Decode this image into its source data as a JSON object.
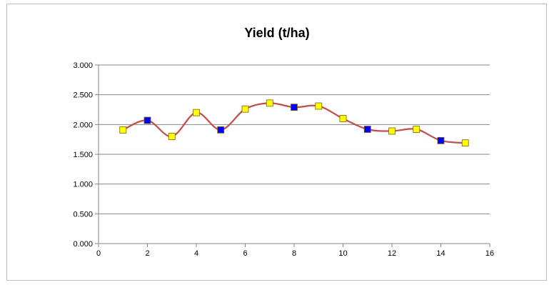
{
  "chart_data": {
    "type": "line",
    "title": "Yield (t/ha)",
    "xlabel": "",
    "ylabel": "",
    "xlim": [
      0,
      16
    ],
    "ylim": [
      0,
      3
    ],
    "x_ticks": [
      "0",
      "2",
      "4",
      "6",
      "8",
      "10",
      "12",
      "14",
      "16"
    ],
    "y_ticks": [
      "0.000",
      "0.500",
      "1.000",
      "1.500",
      "2.000",
      "2.500",
      "3.000"
    ],
    "grid": "horizontal",
    "legend": "none",
    "line_color": "#c0504d",
    "series": [
      {
        "points": [
          {
            "x": 1,
            "y": 1.91,
            "marker_color": "#ffff00"
          },
          {
            "x": 2,
            "y": 2.07,
            "marker_color": "#0000ff"
          },
          {
            "x": 3,
            "y": 1.8,
            "marker_color": "#ffff00"
          },
          {
            "x": 4,
            "y": 2.2,
            "marker_color": "#ffff00"
          },
          {
            "x": 5,
            "y": 1.91,
            "marker_color": "#0000ff"
          },
          {
            "x": 6,
            "y": 2.26,
            "marker_color": "#ffff00"
          },
          {
            "x": 7,
            "y": 2.36,
            "marker_color": "#ffff00"
          },
          {
            "x": 8,
            "y": 2.29,
            "marker_color": "#0000ff"
          },
          {
            "x": 9,
            "y": 2.31,
            "marker_color": "#ffff00"
          },
          {
            "x": 10,
            "y": 2.1,
            "marker_color": "#ffff00"
          },
          {
            "x": 11,
            "y": 1.92,
            "marker_color": "#0000ff"
          },
          {
            "x": 12,
            "y": 1.89,
            "marker_color": "#ffff00"
          },
          {
            "x": 13,
            "y": 1.92,
            "marker_color": "#ffff00"
          },
          {
            "x": 14,
            "y": 1.73,
            "marker_color": "#0000ff"
          },
          {
            "x": 15,
            "y": 1.69,
            "marker_color": "#ffff00"
          }
        ]
      }
    ]
  }
}
